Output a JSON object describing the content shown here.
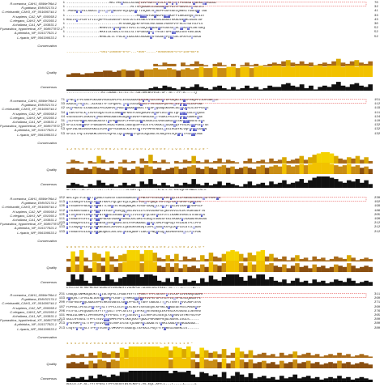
{
  "species": [
    "R.oceanica_CAH1_6096e7f6d-1",
    "R.gattiana_EMV02174.1",
    "C.reinhardtii_CAH3_XP_001690744.1",
    "H.sapiens_CA2_NP_000058.1",
    "C.elegans_CAH3_NP_001055.1",
    "A.thaliana_CA1_NP_193831.1",
    "P.parasitica_hypothetical_XP_008677872.1",
    "A.pthiridus_NP_015177821.1",
    "L.riparia_WP_056199533.1"
  ],
  "track_labels": {
    "conservation": "Conservation",
    "quality": "Quality",
    "consensus": "Consensus"
  },
  "blocks": [
    {
      "start_numbers": [
        "1",
        "1",
        "1",
        "1",
        "1",
        "1",
        "1",
        "1",
        "1"
      ],
      "end_numbers": [
        "70",
        "32",
        "41",
        "33",
        "43",
        "30",
        "52",
        "52",
        "52"
      ],
      "rows": [
        "----------------------MKITMSGKACLALNAFLAVPAATSWEDLKWMEWDYYPVNSNATWGDKDGHKGGGL",
        "---------------------------------MLTSLQSAAKLLAGGAGYSFFNTFPSAVVLEGVGLDIT",
        "-MSRAHLWRLLAGAILCLLLPLPGNGGVFDQIQALHTTISQSKTRPRDPPSSFEAELQRNSITGSEQHTTAA",
        "------------------------------------MSHHWGYGKHNGPEHWHKDFPIAKGERQSPVDIDT",
        "MSEISWLFGVFIFILLQRPPSLAVASSPTSSSTATLESSNDIVSEKSALAARATKKRDENFMLGSASTAF",
        "---------------------------MTSSAEQQLKFSPSSLRSCSAALVSRRPVYFRCSTSATSLPLS",
        "-----------------MRKVLSTHSAFRAITSVLLLLGGQLAHAAEWDYGSESGPDLWHKEWPLAKTGKQ",
        "-----------------MKRILATAAILSTALLSLTSPGASAHEWTYEGETGPEHWAALSEEYASCAGK",
        "-----------------MRKLALILTFALAPLAALANTASAAEWSYGGAEGPQHWGELDPAYGVCADGA"
      ],
      "conservation_numbers": "-----------------*001*100000*0*0*---*000*-----*00000000*0*0*100+00*0",
      "consensus_seq": "------------------KI-LAAAL-LL-LL-S--GA-AHEWSYEGE-GP--W---FP-A-----Q",
      "conservation": [
        0,
        0,
        0,
        0,
        0,
        0,
        0,
        0,
        0,
        0,
        0,
        0,
        0,
        0,
        0,
        0,
        0,
        0,
        0,
        2,
        1,
        3,
        2,
        2,
        0,
        3,
        1,
        2,
        4,
        2,
        1,
        0,
        2,
        3,
        1,
        0,
        2,
        0,
        1,
        3,
        1,
        2,
        0,
        1,
        2,
        3,
        2,
        4,
        5,
        3,
        2,
        4,
        2,
        3,
        1,
        2,
        3,
        2,
        4,
        6,
        3,
        2,
        4,
        5,
        3,
        2,
        4
      ],
      "quality": [
        2,
        3,
        3,
        2,
        3,
        3,
        4,
        4,
        5,
        5,
        4,
        5,
        6,
        5,
        5,
        6,
        5,
        6,
        6,
        7,
        6,
        6,
        7,
        6,
        5,
        6,
        7,
        6,
        7,
        8,
        7,
        7,
        8,
        7,
        7,
        8,
        8,
        7,
        8,
        8,
        7,
        8,
        9,
        8,
        8,
        9,
        9,
        8,
        9,
        8,
        9,
        9,
        9,
        8,
        9,
        9,
        8,
        9,
        9,
        9,
        8,
        9,
        9,
        8,
        9,
        9,
        9
      ],
      "consensus_h": [
        1,
        1,
        1,
        1,
        1,
        1,
        1,
        1,
        1,
        1,
        1,
        1,
        1,
        1,
        1,
        1,
        1,
        1,
        2,
        3,
        2,
        4,
        3,
        2,
        1,
        3,
        2,
        3,
        5,
        3,
        2,
        1,
        3,
        4,
        2,
        1,
        3,
        1,
        2,
        4,
        2,
        3,
        1,
        2,
        4,
        3,
        3,
        5,
        6,
        4,
        3,
        5,
        2,
        4,
        1,
        3,
        4,
        3,
        5,
        7,
        4,
        3,
        5,
        6,
        4,
        3,
        5
      ]
    },
    {
      "start_numbers": [
        "71",
        "33",
        "42",
        "34",
        "44",
        "31",
        "53",
        "53",
        "53"
      ],
      "end_numbers": [
        "151",
        "112",
        "119",
        "111",
        "124",
        "110",
        "132",
        "132",
        "132"
      ],
      "rows": [
        "WPNGWIFPESNEPGKSARVVGKSAPDPVLERSSAAAPKAHGNGGDGVKGFTDPSGQKCRIHIPVSQFFIIDPEAKPLE",
        "AAGGGPFSCCG--ALKSATYFTDPQAPG-GSHISSSDQWSGTFVSSSADPQSYRLPAIHFHWSCDGPSNE",
        "DGGPRDEGTLEAAGGALPRLAARVSPPAATHGAAEHDAELTSWAPPQSAQGKGRKCGGGHQHSLSIEPPSSWE",
        "HTAKYDPSLKPLSVSYDQATSLRILNNGHAFNVEFDDSQDKAVLKGGPLDGTYRLIQFHFHWGSLDGQGSE",
        "VSESEDDPLDSKSVEPMSERMSEAAEEKGGQAFEAVEPFAKKDDDPTYSAKLPRIDFVHFHWGAAKEGSE",
        "PSLPESPAHDLNSSAEASSVTWSFKHDGSPIFPNFGLEHVDDGKISLVRDGGKGLWLSKFHFHSSEGTEHE",
        "SPIDIVAEHAVFTPAAGARPLRSAIYGKNLIAGEQGVPFGLKTPLVKGKIPGGAKGQYFVSLKIHWPSEHTGE",
        "QSPINLNEAVASPAKGLEGFKFSPYGEAKGLKIENTGHTVVFMPVENGELPEGIKGAYKLVQFHFHWGSSHN",
        "SPIDLTPQTIKVGKMLDVRFDYQPSLLQLHNNGHTFQVDLAQDAGLVLNGQYRLVQFHFHTPSEHHLNGE"
      ],
      "conservation_numbers": "1 2 0 5 0 0 1 7 0 0 0 0 2 1 0 0 3 2 6 0 1 2 4 0 0 0 7 1 9 8 7 0 0 4 2 0 *",
      "consensus_seq": "SP-DI---A--P-----L---Y-P-------N-GHT-Q---------K-G-L-G-YRLVQFHFHWGS-DG-E",
      "conservation": [
        1,
        3,
        2,
        1,
        0,
        2,
        1,
        6,
        3,
        1,
        2,
        0,
        1,
        3,
        1,
        2,
        0,
        4,
        2,
        7,
        2,
        1,
        3,
        1,
        0,
        2,
        1,
        3,
        2,
        6,
        2,
        1,
        3,
        1,
        2,
        4,
        1,
        3,
        2,
        1,
        0,
        2,
        4,
        1,
        2,
        3,
        1,
        4,
        2,
        3,
        5,
        2,
        3,
        4,
        6,
        3,
        5,
        7,
        8,
        9,
        9,
        8,
        6,
        4,
        3,
        5,
        4,
        6,
        3,
        5,
        2
      ],
      "quality": [
        4,
        5,
        4,
        3,
        5,
        4,
        6,
        5,
        4,
        3,
        5,
        4,
        6,
        5,
        3,
        4,
        6,
        5,
        7,
        6,
        4,
        5,
        3,
        4,
        5,
        6,
        4,
        5,
        6,
        7,
        5,
        4,
        6,
        5,
        4,
        6,
        7,
        5,
        6,
        4,
        5,
        6,
        5,
        4,
        6,
        7,
        5,
        6,
        7,
        6,
        8,
        7,
        6,
        7,
        8,
        7,
        8,
        9,
        9,
        9,
        9,
        8,
        7,
        6,
        7,
        8,
        6,
        7,
        5,
        6,
        4
      ],
      "consensus_h": [
        2,
        4,
        3,
        2,
        1,
        3,
        2,
        6,
        4,
        2,
        3,
        1,
        2,
        4,
        2,
        3,
        1,
        5,
        3,
        7,
        3,
        2,
        4,
        2,
        1,
        3,
        2,
        4,
        3,
        7,
        3,
        2,
        4,
        2,
        3,
        5,
        2,
        4,
        3,
        2,
        1,
        3,
        5,
        2,
        3,
        4,
        2,
        5,
        3,
        4,
        6,
        3,
        4,
        5,
        7,
        4,
        6,
        8,
        9,
        9,
        9,
        8,
        7,
        5,
        4,
        6,
        5,
        7,
        4,
        6,
        3
      ]
    },
    {
      "start_numbers": [
        "152",
        "113",
        "120",
        "112",
        "125",
        "111",
        "133",
        "133",
        "133"
      ],
      "end_numbers": [
        "230",
        "192",
        "199",
        "186",
        "205",
        "190",
        "212",
        "212",
        "212"
      ],
      "rows": [
        "NRCIQSTPIEIHLTHQRKDTGAVSVTDDRVNGMSVRWFFNDLPPESEGAHKMVHQLLSLPSGGSLGSSVLGSPPKMFHA",
        "HTLDGKQYPLEAHLVHWNTKAPLPQLQEFEQLLQNGTVGSPPFQAQLTRPIIQTVAWPGPAPTQAWCRS",
        "HTVSGRRYPAEAHLVHANTTLSRFTKTKGAQNAQRLFDSSFGAAQPLLSHPPTHGLAVLRAFHLVNPSCP",
        "HTVDKKKYAAELHLVHWNTKYGDFGKAVQQPDGLAVLGIFLKVGSAKPGLQKVVDVLDSIKTKGKSADFTN",
        "HTINGKRFPLEMHLVHYNTKHGSLEKAAEHKDGLLVLGVFFQLGEEHEEFDTLLKAMEEVKKLGTEAEDHA",
        "HTVNGERYSFELHLVHHKPADGEVGAMHRDNGLAVLGMLFEAGQTDDAEGFEALVKAAPHLKAGAERGRSAG",
        "HTVNGQRYDLELHLVHSNSKPEEKHAAVLGVLFRPGKANSLFHAWLSMLPSQPGQTFRIADATPLLPPD",
        "HTLDGQRYPLEVHLVHKNEAGELAVVGVLLQEGGKSVAVQTLRPLPSAAGKSYQIAHPLDLATLLPAAS",
        "HTVNGERYDLEAHLVHQNDQKELAVLGVLFKEGQANPTLAKLWPNQHEGQPKAVKNFNPAPLLPGEPAK"
      ],
      "conservation_numbers": "9 8 6 0 0 5 6 3 6 2 0 1 4 2 1 9 8 9 9 0 6 0 4 3 0 0 2 1 5 0 0 3 2 1 0 +",
      "consensus_seq": "DYELLOFHFHKPMEHOPGGHOIPHVHDNDFLVSDKPGE-GLAVLGVLFKEG--N-----L-----A---",
      "conservation": [
        2,
        8,
        4,
        9,
        3,
        1,
        7,
        6,
        3,
        8,
        4,
        2,
        5,
        6,
        9,
        9,
        9,
        6,
        9,
        9,
        7,
        3,
        2,
        5,
        2,
        6,
        1,
        4,
        2,
        3,
        1,
        5,
        2,
        7,
        4,
        3,
        6,
        8,
        9,
        8,
        6,
        3,
        7,
        5,
        8,
        9,
        4,
        6,
        3,
        2,
        4,
        1,
        3,
        5,
        2,
        3,
        1,
        4,
        2,
        3,
        1,
        2,
        4,
        3,
        2,
        5,
        3,
        1,
        2,
        3,
        2
      ],
      "quality": [
        4,
        9,
        6,
        9,
        5,
        3,
        8,
        7,
        5,
        9,
        6,
        4,
        7,
        8,
        9,
        9,
        9,
        7,
        9,
        9,
        8,
        5,
        4,
        7,
        4,
        7,
        3,
        6,
        4,
        5,
        3,
        6,
        4,
        8,
        6,
        5,
        7,
        9,
        9,
        9,
        7,
        5,
        8,
        6,
        9,
        9,
        6,
        7,
        5,
        4,
        6,
        3,
        5,
        7,
        4,
        5,
        3,
        6,
        4,
        5,
        3,
        4,
        6,
        5,
        4,
        7,
        5,
        3,
        4,
        5,
        4
      ],
      "consensus_h": [
        3,
        9,
        5,
        9,
        4,
        2,
        8,
        7,
        4,
        9,
        5,
        3,
        6,
        7,
        9,
        9,
        9,
        7,
        9,
        9,
        8,
        4,
        3,
        6,
        3,
        7,
        2,
        5,
        3,
        4,
        2,
        6,
        3,
        8,
        5,
        4,
        7,
        9,
        9,
        9,
        7,
        4,
        8,
        6,
        9,
        9,
        5,
        7,
        4,
        3,
        5,
        2,
        4,
        6,
        3,
        4,
        2,
        5,
        3,
        4,
        2,
        3,
        5,
        4,
        3,
        6,
        4,
        2,
        3,
        4,
        3
      ]
    },
    {
      "start_numbers": [
        "231",
        "193",
        "200",
        "187",
        "206",
        "191",
        "213",
        "213",
        "213"
      ],
      "end_numbers": [
        "311",
        "260",
        "271",
        "260",
        "276",
        "265",
        "280",
        "280",
        "280"
      ],
      "rows": [
        "LNAQQLGNMKAQDDKTLHIGLVQPSLLPAAEFRYYTYPGSLTTPPLSESVTWIVLKEPIDVSSEQLAAFR",
        "AHAQVLTIPVGLNLDDEVHGNMYPLRAFTGYRMSGWFGHAYGVPEFAPCFATFLGPVPSLSIQASAFPE",
        "FSSFRSEPWQLAAACRPVLRKSSVAEELSDHLPPSLRGTARYTAAGSLTTPPCTENVTWVVLAKPIEVS",
        "FDPRGLLPESLDYWTYPGSLTTPPLLECVTWIVLKEPISVSSEQVLKFRKLNFNGEGEPEELMVDNWRP",
        "FSTFSLLPEQSADSTKYYTYPGSLTTPPCSEIVTWIVFKSPVEVSNEQLEKFRSLKFDDGSEILNVVRD",
        "MRAIGLNMPLLVPRVRDPKYYVYPGSLTTPPCSEGVTWILLRRPIKISEEQLYAFRAVLRTMEFSGYVP",
        "GGLLRYDGSLTTPPCTEGVHWHVMPEPVPLSKEQVATFQAALPNPANRPVQGLNGRVLLSGLS-----",
        "FPAYKMPGSLTTPPCSEGVQWHVLVNPIVISETQLNAFRHLAAAATSTHRKLSAADWRHNGGAEAA--",
        "LSQYYHYDGSLTTPPCTEGVRWLVMVKPVTASAEQLTAFRALLPSQTYTPHREGLNGRKLLS------"
      ],
      "conservation_numbers": "4 4 4 2 0 8 2 0 8 1 8 8 8 0 2 4 0 6 8 2 0 8 0 0 5 1 0 0 1 1 1 0 *",
      "consensus_seq": "ADLLE-LP-SL-YYTYPGSLTTPPCSEGVTWIVLKEPI-VS-EQL-AFR-L---T-----L-----L",
      "conservation": [
        2,
        3,
        2,
        3,
        1,
        4,
        2,
        5,
        4,
        3,
        5,
        4,
        8,
        7,
        9,
        9,
        9,
        9,
        9,
        9,
        9,
        8,
        9,
        6,
        9,
        8,
        7,
        9,
        5,
        3,
        8,
        6,
        4,
        5,
        3,
        7,
        2,
        4,
        8,
        5,
        3,
        6,
        2,
        3,
        4,
        2,
        3,
        1,
        4,
        2,
        3,
        5,
        2,
        3,
        4,
        2,
        3,
        1,
        2,
        3,
        2,
        4,
        2,
        3,
        1,
        2,
        3,
        2,
        1
      ],
      "quality": [
        4,
        5,
        4,
        5,
        3,
        6,
        4,
        7,
        6,
        5,
        7,
        6,
        9,
        8,
        9,
        9,
        9,
        9,
        9,
        9,
        9,
        9,
        9,
        7,
        9,
        9,
        8,
        9,
        7,
        5,
        9,
        7,
        6,
        7,
        5,
        8,
        4,
        6,
        9,
        7,
        5,
        7,
        4,
        5,
        6,
        4,
        5,
        3,
        6,
        4,
        5,
        7,
        4,
        5,
        6,
        4,
        5,
        3,
        4,
        5,
        4,
        6,
        4,
        5,
        3,
        4,
        5,
        4,
        3
      ],
      "consensus_h": [
        3,
        4,
        3,
        4,
        2,
        5,
        3,
        6,
        5,
        4,
        6,
        5,
        8,
        8,
        9,
        9,
        9,
        9,
        9,
        9,
        9,
        9,
        9,
        7,
        9,
        8,
        8,
        9,
        6,
        4,
        8,
        7,
        5,
        6,
        4,
        8,
        3,
        5,
        8,
        6,
        4,
        7,
        3,
        4,
        5,
        3,
        4,
        2,
        5,
        3,
        4,
        6,
        3,
        4,
        5,
        3,
        4,
        2,
        3,
        4,
        3,
        5,
        3,
        4,
        2,
        3,
        4,
        3,
        2
      ]
    }
  ]
}
